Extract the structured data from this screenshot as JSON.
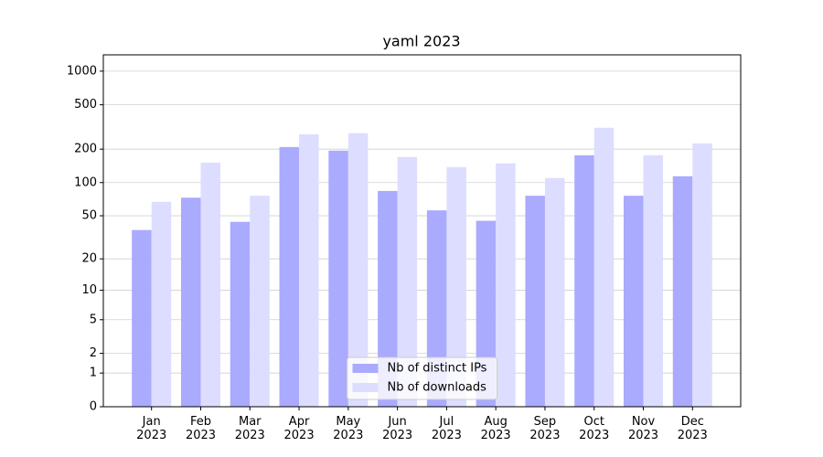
{
  "chart_data": {
    "type": "bar",
    "title": "yaml 2023",
    "categories": [
      "Jan\n2023",
      "Feb\n2023",
      "Mar\n2023",
      "Apr\n2023",
      "May\n2023",
      "Jun\n2023",
      "Jul\n2023",
      "Aug\n2023",
      "Sep\n2023",
      "Oct\n2023",
      "Nov\n2023",
      "Dec\n2023"
    ],
    "series": [
      {
        "name": "Nb of distinct IPs",
        "color": "#aaaaff",
        "values": [
          37,
          73,
          44,
          209,
          194,
          84,
          56,
          45,
          76,
          176,
          76,
          114
        ]
      },
      {
        "name": "Nb of downloads",
        "color": "#ddddff",
        "values": [
          67,
          151,
          76,
          272,
          278,
          170,
          138,
          149,
          110,
          311,
          176,
          225
        ]
      }
    ],
    "yscale": "log1p",
    "ylim": [
      0,
      1400
    ],
    "yticks": [
      0,
      1,
      2,
      5,
      10,
      20,
      50,
      100,
      200,
      500,
      1000
    ],
    "grid": true,
    "legend": "lower center"
  }
}
